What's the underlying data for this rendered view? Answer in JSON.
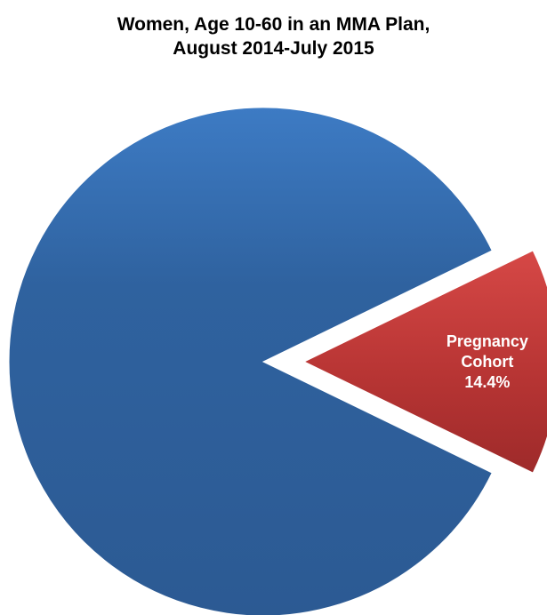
{
  "chart_data": {
    "type": "pie",
    "title_lines": [
      "Women, Age 10-60 in an MMA Plan,",
      "August 2014-July 2015"
    ],
    "slices": [
      {
        "name": "",
        "value": 85.6,
        "color": "#2e5d9a",
        "highlight": "#3f7ec6",
        "exploded": false,
        "label_lines": []
      },
      {
        "name": "Pregnancy Cohort",
        "value": 14.4,
        "color": "#c0393a",
        "highlight": "#d84c4a",
        "exploded": true,
        "label_lines": [
          "Pregnancy",
          "Cohort",
          "14.4%"
        ]
      }
    ],
    "legend": "none"
  }
}
